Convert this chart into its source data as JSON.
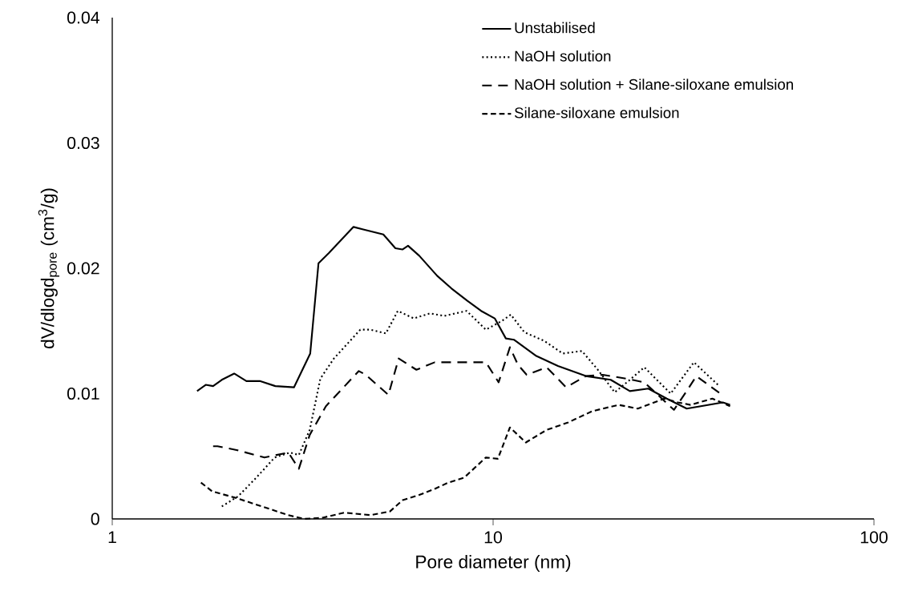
{
  "chart_data": {
    "type": "line",
    "xlabel": "Pore diameter (nm)",
    "ylabel": "dV/dlogd$_{pore}$ (cm$^{3}$/g)",
    "log": "x",
    "xlim": [
      1,
      100
    ],
    "xticks": [
      1,
      10,
      100
    ],
    "ylim": [
      0,
      0.04
    ],
    "yticks": [
      0,
      0.01,
      0.02,
      0.03,
      0.04
    ],
    "grid": false,
    "legend": "top right",
    "marker": "none",
    "series": [
      {
        "name": "Unstabilised",
        "color": "#000000",
        "line_style": "solid",
        "x": [
          1.67,
          1.76,
          1.84,
          1.94,
          2.09,
          2.25,
          2.44,
          2.68,
          3.0,
          3.31,
          3.48,
          3.7,
          4.3,
          4.56,
          5.15,
          5.54,
          5.78,
          5.98,
          6.4,
          7.13,
          7.77,
          8.56,
          9.3,
          10.1,
          10.8,
          11.34,
          12.99,
          14.8,
          17.52,
          20.36,
          22.86,
          25.56,
          28.57,
          32.24,
          40.1,
          41.9
        ],
        "values": [
          0.0102,
          0.0107,
          0.0106,
          0.0111,
          0.0116,
          0.011,
          0.011,
          0.0106,
          0.0105,
          0.0132,
          0.0204,
          0.0212,
          0.0233,
          0.0231,
          0.0227,
          0.0216,
          0.0215,
          0.0218,
          0.021,
          0.0194,
          0.0184,
          0.0174,
          0.0166,
          0.016,
          0.0144,
          0.0143,
          0.013,
          0.0122,
          0.0114,
          0.0111,
          0.0102,
          0.0104,
          0.0096,
          0.0088,
          0.0093,
          0.0091
        ]
      },
      {
        "name": "NaOH solution",
        "color": "#000000",
        "line_style": "dotted",
        "x": [
          1.94,
          2.14,
          2.39,
          2.67,
          2.93,
          3.09,
          3.3,
          3.52,
          3.82,
          4.48,
          4.77,
          5.23,
          5.62,
          6.19,
          6.83,
          7.44,
          8.52,
          9.57,
          10.55,
          11.13,
          12.08,
          13.63,
          15.23,
          17.11,
          18.84,
          20.86,
          22.86,
          24.95,
          29.26,
          33.67,
          38.95
        ],
        "values": [
          0.001,
          0.0018,
          0.0033,
          0.0049,
          0.0053,
          0.0051,
          0.0071,
          0.0112,
          0.0128,
          0.0151,
          0.0151,
          0.0148,
          0.0166,
          0.016,
          0.0164,
          0.0162,
          0.0166,
          0.0151,
          0.0158,
          0.0163,
          0.0149,
          0.0142,
          0.0132,
          0.0134,
          0.0119,
          0.0101,
          0.0111,
          0.0121,
          0.01,
          0.0125,
          0.0107
        ]
      },
      {
        "name": "NaOH solution + Silane-siloxane emulsion",
        "color": "#000000",
        "line_style": "dashed",
        "x": [
          1.84,
          1.89,
          2.12,
          2.51,
          2.9,
          3.09,
          3.3,
          3.64,
          4.44,
          4.63,
          5.31,
          5.65,
          6.29,
          7.03,
          9.57,
          10.34,
          11.07,
          11.62,
          12.25,
          13.82,
          15.55,
          17.52,
          19.4,
          22.32,
          24.95,
          29.84,
          32.55,
          34.17,
          39.5
        ],
        "values": [
          0.0058,
          0.0058,
          0.0055,
          0.0049,
          0.0053,
          0.004,
          0.0067,
          0.009,
          0.0118,
          0.0115,
          0.0099,
          0.0128,
          0.0119,
          0.0125,
          0.0125,
          0.0109,
          0.0137,
          0.0123,
          0.0115,
          0.0121,
          0.0105,
          0.0114,
          0.0115,
          0.0112,
          0.0109,
          0.0087,
          0.0104,
          0.0114,
          0.01
        ]
      },
      {
        "name": "Silane-siloxane emulsion",
        "color": "#000000",
        "line_style": "dashed",
        "x": [
          1.71,
          1.83,
          2.1,
          2.47,
          2.9,
          3.19,
          3.57,
          4.07,
          4.77,
          5.36,
          5.79,
          6.38,
          7.03,
          7.63,
          8.4,
          9.57,
          10.29,
          11.07,
          12.19,
          13.82,
          15.75,
          18.22,
          21.36,
          23.99,
          28.18,
          30.55,
          33.0,
          37.65,
          41.9
        ],
        "values": [
          0.0029,
          0.0022,
          0.0017,
          0.001,
          0.0003,
          0.0,
          0.0001,
          0.0005,
          0.0003,
          0.0006,
          0.0015,
          0.0019,
          0.0024,
          0.0029,
          0.0033,
          0.0049,
          0.0048,
          0.0073,
          0.0061,
          0.0071,
          0.0077,
          0.0086,
          0.0091,
          0.0088,
          0.0096,
          0.0093,
          0.0091,
          0.0096,
          0.009
        ]
      }
    ]
  }
}
